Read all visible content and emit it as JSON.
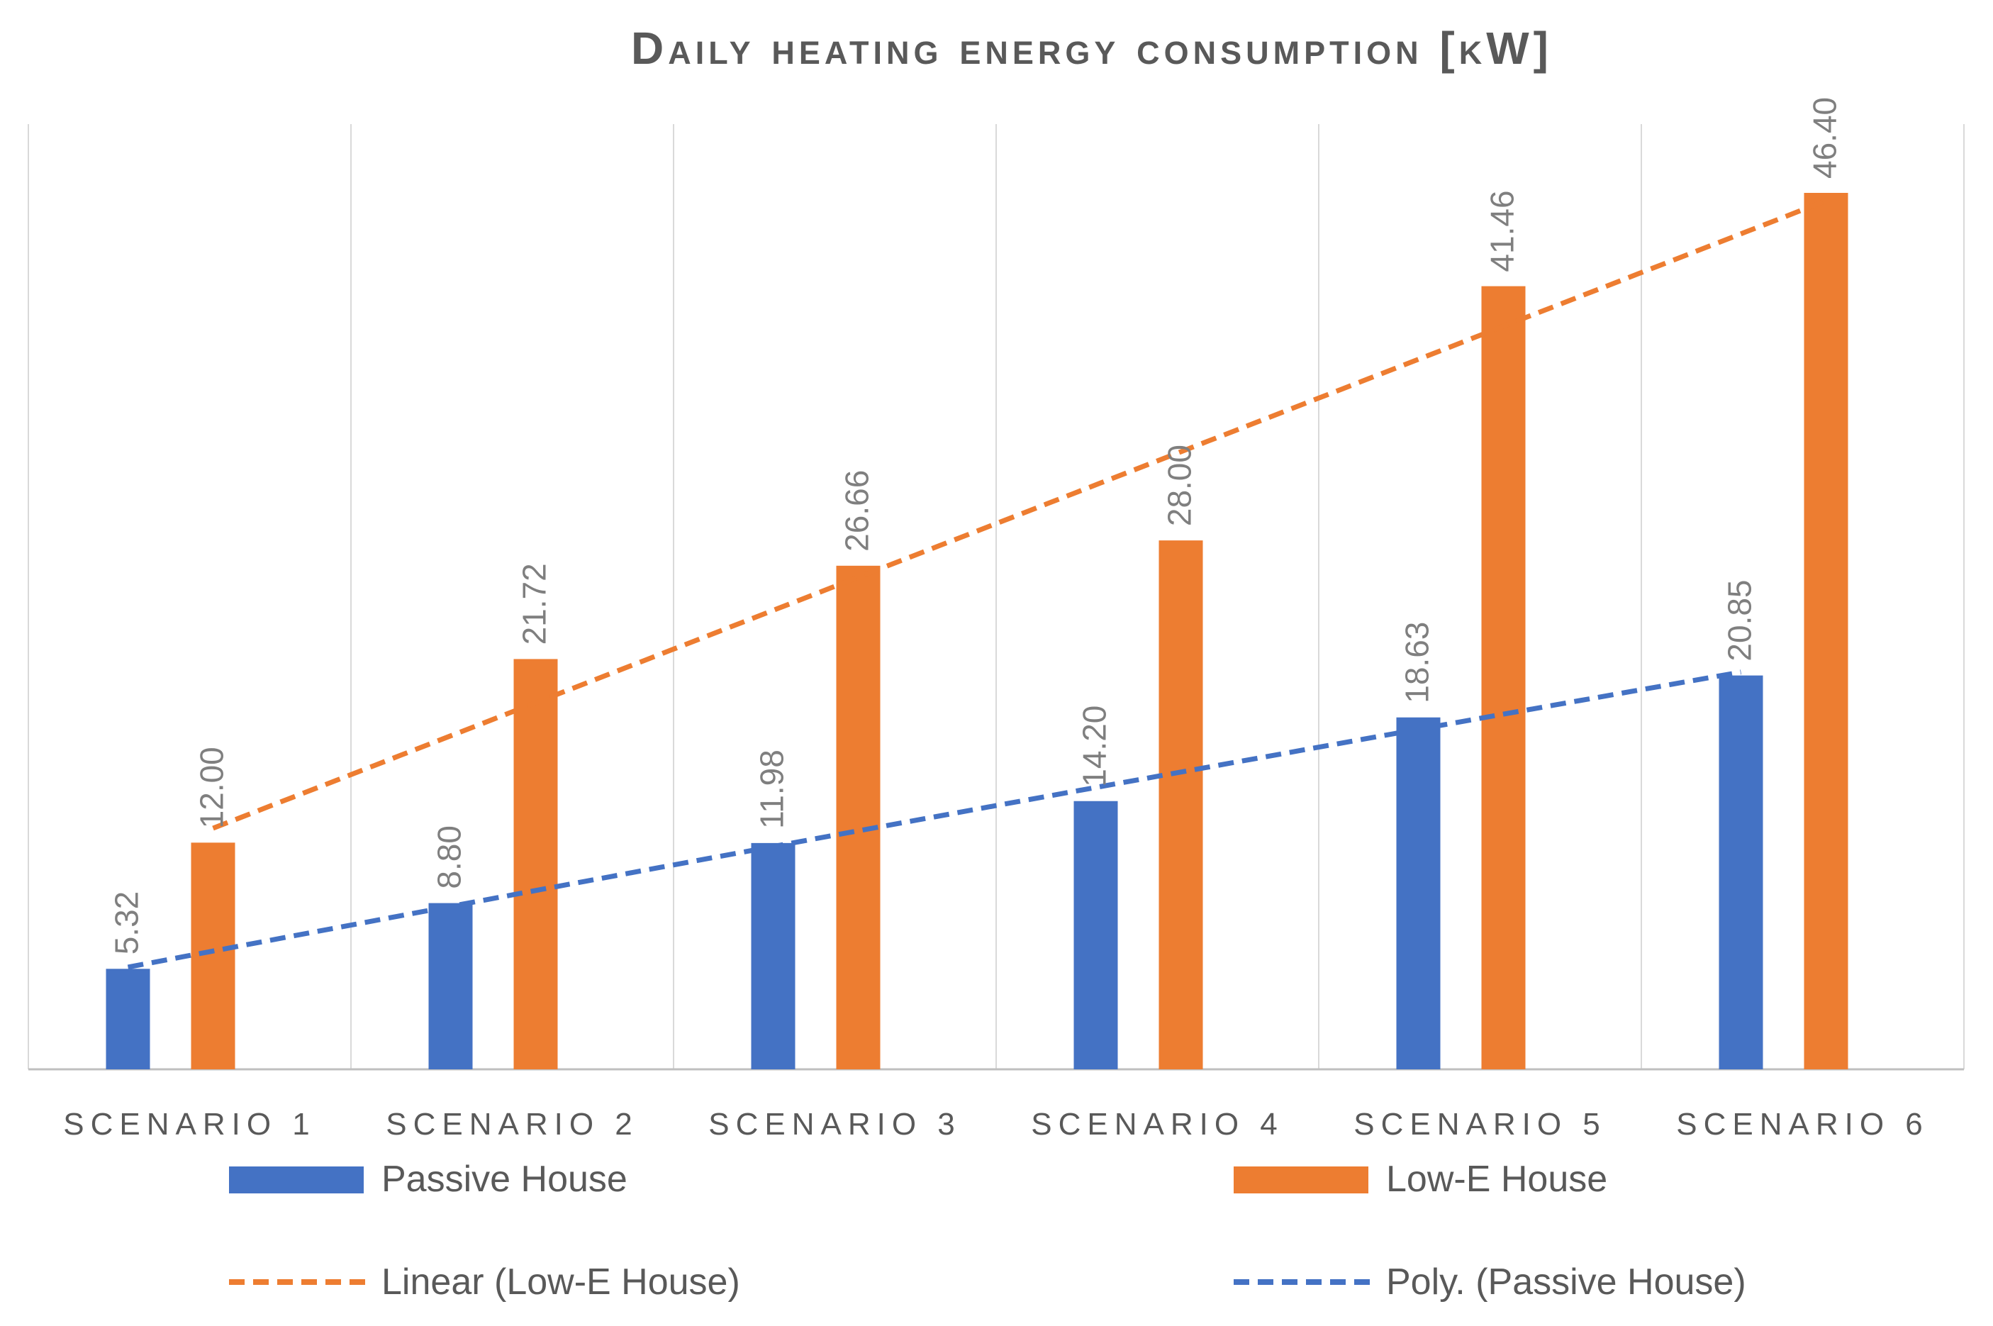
{
  "chart_data": {
    "type": "bar",
    "title": "Daily heating energy consumption [kW]",
    "xlabel": "",
    "ylabel": "",
    "ylim": [
      0,
      46.4
    ],
    "grid": "vertical",
    "categories": [
      "Scenario 1",
      "Scenario 2",
      "Scenario 3",
      "Scenario 4",
      "Scenario 5",
      "Scenario 6"
    ],
    "series": [
      {
        "name": "Passive House",
        "color": "#4472C4",
        "values": [
          5.32,
          8.8,
          11.98,
          14.2,
          18.63,
          20.85
        ],
        "labels": [
          "5.32",
          "8.80",
          "11.98",
          "14.20",
          "18.63",
          "20.85"
        ]
      },
      {
        "name": "Low-E House",
        "color": "#ED7D31",
        "values": [
          12.0,
          21.72,
          26.66,
          28.0,
          41.46,
          46.4
        ],
        "labels": [
          "12.00",
          "21.72",
          "26.66",
          "28.00",
          "41.46",
          "46.40"
        ]
      }
    ],
    "trendlines": [
      {
        "name": "Linear (Low-E House)",
        "series": "Low-E House",
        "kind": "linear",
        "color": "#ED7D31",
        "style": "dashed"
      },
      {
        "name": "Poly. (Passive House)",
        "series": "Passive House",
        "kind": "polynomial",
        "color": "#4472C4",
        "style": "dashed"
      }
    ],
    "legend": {
      "placement": "bottom",
      "entries": [
        "Passive House",
        "Low-E House",
        "Linear (Low-E House)",
        "Poly. (Passive House)"
      ]
    },
    "colors": {
      "title": "#595959",
      "axis_label": "#595959",
      "data_label": "#7F7F7F",
      "grid": "#D9D9D9",
      "axis": "#BFBFBF"
    }
  }
}
